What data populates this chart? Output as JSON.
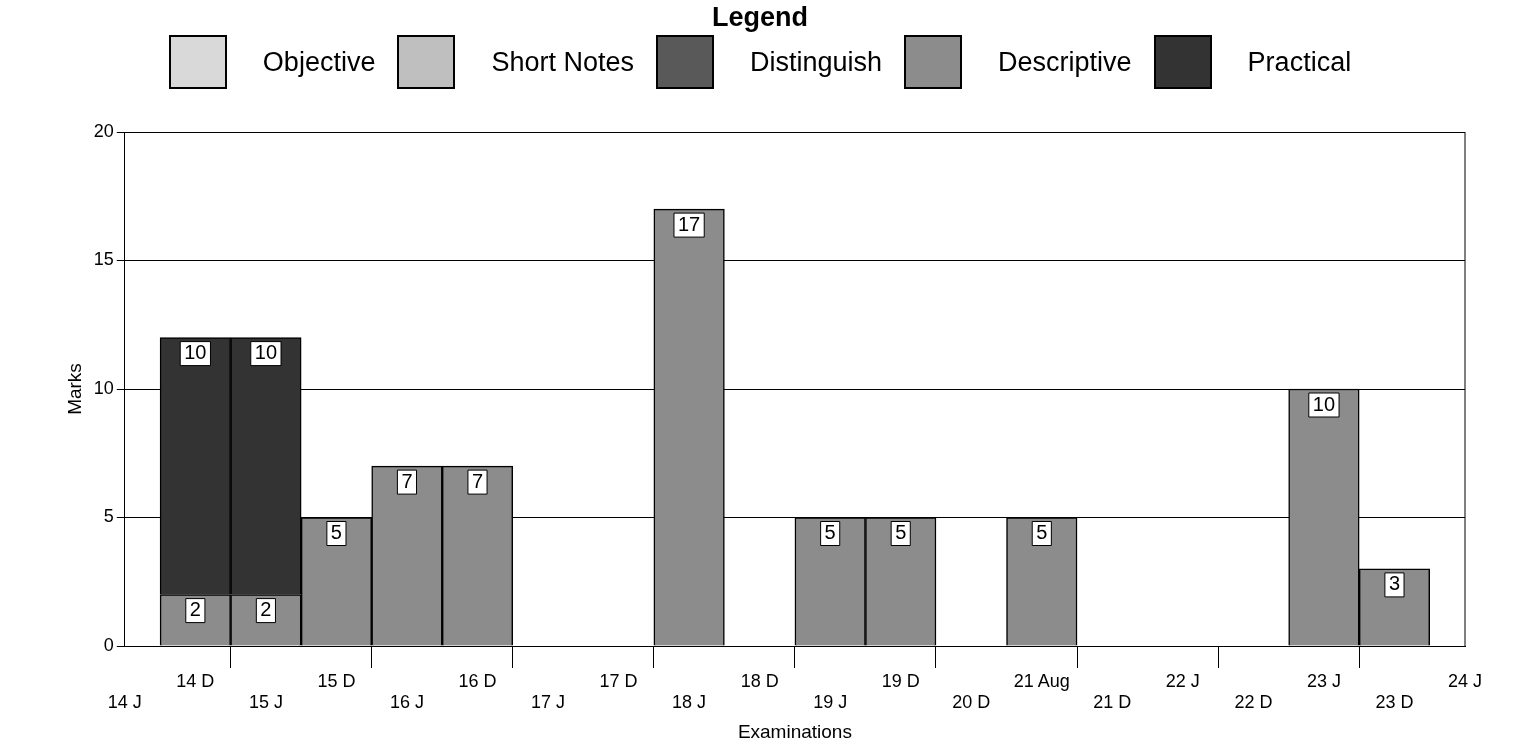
{
  "chart_data": {
    "type": "bar",
    "legend_title": "Legend",
    "xlabel": "Examinations",
    "ylabel": "Marks",
    "categories": [
      "14 J",
      "14 D",
      "15 J",
      "15 D",
      "16 J",
      "16 D",
      "17 J",
      "17 D",
      "18 J",
      "18 D",
      "19 J",
      "19 D",
      "20 D",
      "21 Aug",
      "21 D",
      "22 J",
      "22 D",
      "23 J",
      "23 D",
      "24 J"
    ],
    "stacked": true,
    "series": [
      {
        "name": "Objective",
        "color": "#d9d9d9",
        "values": [
          null,
          null,
          null,
          null,
          null,
          null,
          null,
          null,
          null,
          null,
          null,
          null,
          null,
          null,
          null,
          null,
          null,
          null,
          null,
          null
        ]
      },
      {
        "name": "Short Notes",
        "color": "#bfbfbf",
        "values": [
          null,
          null,
          null,
          null,
          null,
          null,
          null,
          null,
          null,
          null,
          null,
          null,
          null,
          null,
          null,
          null,
          null,
          null,
          null,
          null
        ]
      },
      {
        "name": "Distinguish",
        "color": "#595959",
        "values": [
          null,
          null,
          null,
          null,
          null,
          null,
          null,
          null,
          null,
          null,
          null,
          null,
          null,
          null,
          null,
          null,
          null,
          null,
          null,
          null
        ]
      },
      {
        "name": "Descriptive",
        "color": "#8c8c8c",
        "values": [
          null,
          2,
          2,
          5,
          7,
          7,
          null,
          null,
          17,
          null,
          5,
          5,
          null,
          5,
          null,
          null,
          null,
          10,
          3,
          null
        ]
      },
      {
        "name": "Practical",
        "color": "#333333",
        "values": [
          null,
          10,
          10,
          null,
          null,
          null,
          null,
          null,
          null,
          null,
          null,
          null,
          null,
          null,
          null,
          null,
          null,
          null,
          null,
          null
        ]
      }
    ],
    "ylim": [
      0,
      20
    ],
    "yticks": [
      0,
      5,
      10,
      15,
      20
    ],
    "grid": "y",
    "legend": "top",
    "data_labels": true
  }
}
